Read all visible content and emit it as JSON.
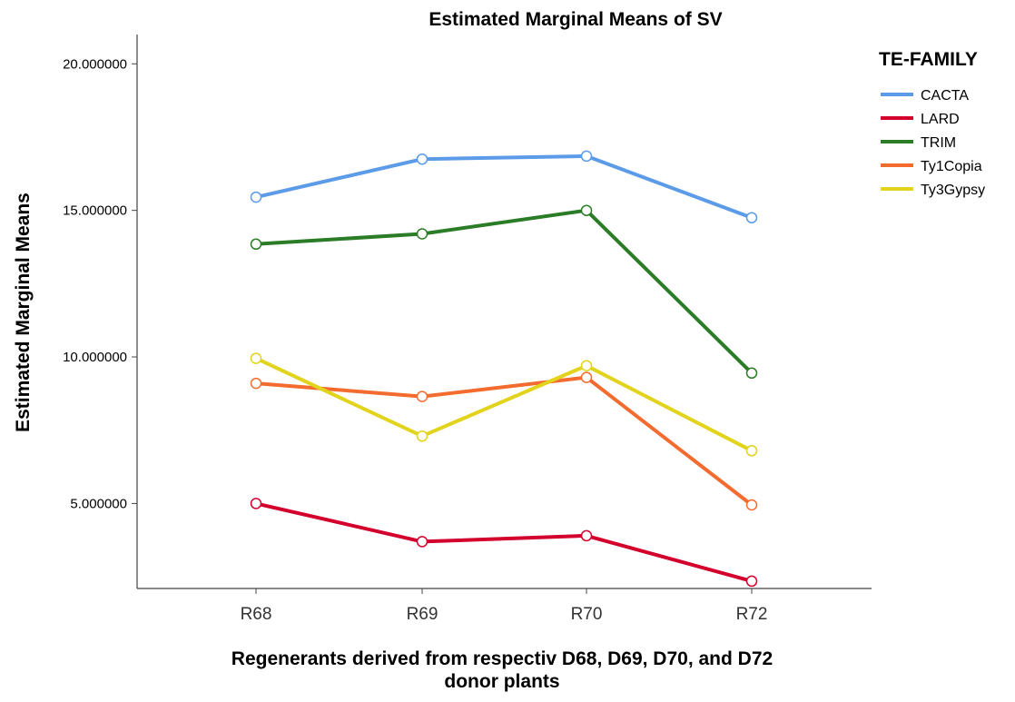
{
  "chart_data": {
    "type": "line",
    "title": "Estimated Marginal Means of SV",
    "ylabel": "Estimated Marginal Means",
    "xlabel_lines": [
      "Regenerants derived from respectiv D68, D69, D70, and D72",
      "donor plants"
    ],
    "categories": [
      "R68",
      "R69",
      "R70",
      "R72"
    ],
    "ylim": [
      2.1,
      21.0
    ],
    "yticks": [
      5.0,
      10.0,
      15.0,
      20.0
    ],
    "ytick_labels": [
      "5.000000",
      "10.000000",
      "15.000000",
      "20.000000"
    ],
    "grid": false,
    "markers": "open-circle",
    "legend": {
      "title": "TE-FAMILY",
      "placement": "right"
    },
    "series": [
      {
        "name": "CACTA",
        "color": "#5b9be8",
        "values": [
          15.45,
          16.75,
          16.85,
          14.75
        ]
      },
      {
        "name": "LARD",
        "color": "#d3002e",
        "values": [
          5.0,
          3.7,
          3.9,
          2.35
        ]
      },
      {
        "name": "TRIM",
        "color": "#2a7d26",
        "values": [
          13.85,
          14.2,
          15.0,
          9.45
        ]
      },
      {
        "name": "Ty1Copia",
        "color": "#f36b2e",
        "values": [
          9.1,
          8.65,
          9.3,
          4.95
        ]
      },
      {
        "name": "Ty3Gypsy",
        "color": "#e2d31c",
        "values": [
          9.95,
          7.3,
          9.7,
          6.8
        ]
      }
    ]
  }
}
